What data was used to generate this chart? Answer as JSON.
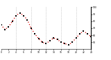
{
  "title": "",
  "x_values": [
    0,
    1,
    2,
    3,
    4,
    5,
    6,
    7,
    8,
    9,
    10,
    11,
    12,
    13,
    14,
    15,
    16,
    17,
    18,
    19,
    20,
    21,
    22,
    23,
    24
  ],
  "y_values": [
    75,
    68,
    72,
    80,
    88,
    92,
    88,
    82,
    70,
    62,
    55,
    50,
    48,
    52,
    56,
    54,
    50,
    48,
    46,
    50,
    56,
    62,
    66,
    62,
    58
  ],
  "line_color": "#dd0000",
  "marker_color": "#000000",
  "bg_color": "#ffffff",
  "plot_bg": "#ffffff",
  "grid_color": "#888888",
  "ylim": [
    40,
    100
  ],
  "ytick_values": [
    50,
    60,
    70,
    80,
    90,
    100
  ],
  "xtick_values": [
    0,
    2,
    4,
    6,
    8,
    10,
    12,
    14,
    16,
    18,
    20,
    22,
    24
  ],
  "vline_positions": [
    4,
    8,
    12,
    16,
    20
  ],
  "vline_color": "#aaaaaa"
}
